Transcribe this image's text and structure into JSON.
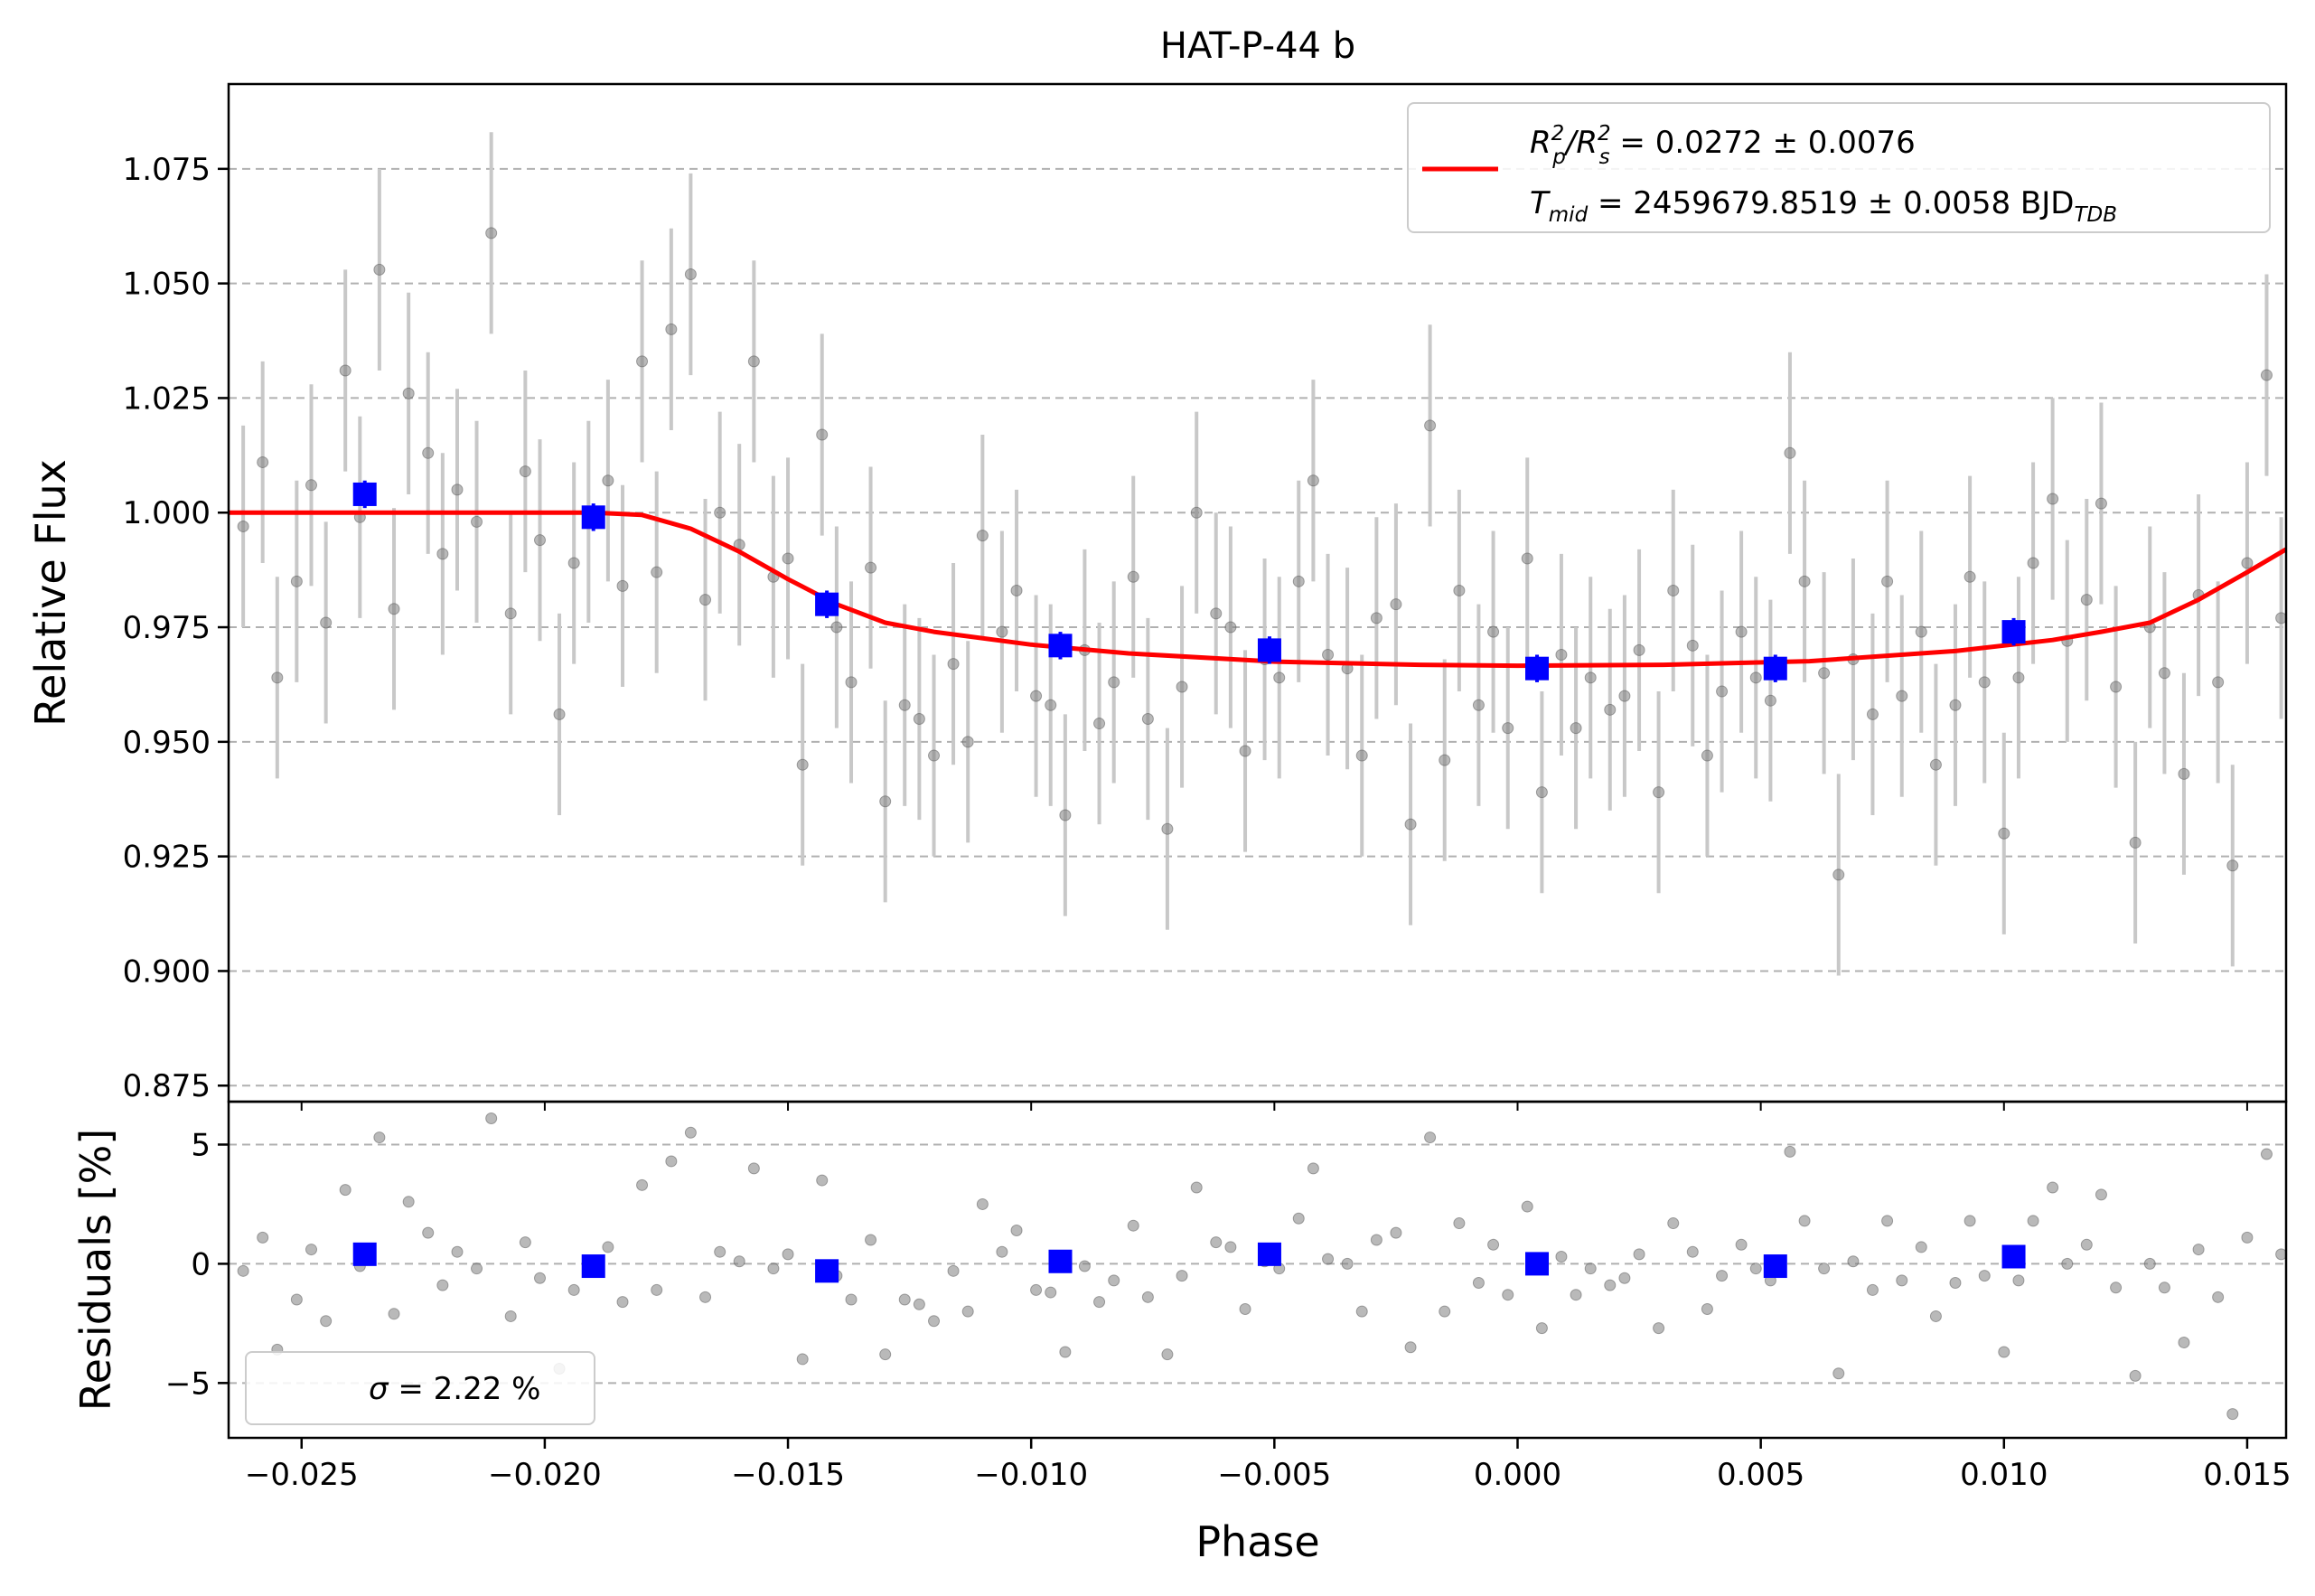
{
  "title": "HAT-P-44 b",
  "top_panel": {
    "ylabel": "Relative Flux",
    "legend": {
      "line1": {
        "pre": "R",
        "sub1": "p",
        "sup1": "2",
        "mid": "/R",
        "sub2": "s",
        "sup2": "2",
        "post": " = 0.0272 ± 0.0076"
      },
      "line2": {
        "pre": "T",
        "sub": "mid",
        "post": " = 2459679.8519 ± 0.0058 BJD",
        "post_sub": "TDB"
      }
    }
  },
  "bottom_panel": {
    "ylabel": "Residuals [%]",
    "legend": {
      "sigma_symbol": "σ",
      "text": " = 2.22 %"
    }
  },
  "xlabel": "Phase",
  "colors": {
    "model": "#ff0000",
    "binned": "#0000ff",
    "data": "#808080",
    "errorbar": "#c8c8c8",
    "grid": "#b0b0b0"
  },
  "chart_data": [
    {
      "type": "scatter",
      "title": "HAT-P-44 b",
      "xlabel": "Phase",
      "ylabel": "Relative Flux",
      "xlim": [
        -0.0265,
        0.0158
      ],
      "ylim": [
        0.8715,
        1.0935
      ],
      "grid": "horizontal dashed",
      "legend_position": "top-right",
      "x_ticks": [
        "−0.025",
        "−0.020",
        "−0.015",
        "−0.010",
        "−0.005",
        "0.000",
        "0.005",
        "0.010",
        "0.015"
      ],
      "x_tick_values": [
        -0.025,
        -0.02,
        -0.015,
        -0.01,
        -0.005,
        0.0,
        0.005,
        0.01,
        0.015
      ],
      "y_ticks": [
        "0.875",
        "0.900",
        "0.925",
        "0.950",
        "0.975",
        "1.000",
        "1.025",
        "1.050",
        "1.075"
      ],
      "y_tick_values": [
        0.875,
        0.9,
        0.925,
        0.95,
        0.975,
        1.0,
        1.025,
        1.05,
        1.075
      ],
      "model_series": {
        "name": "R_p^2/R_s^2 = 0.0272 ± 0.0076; T_mid = 2459679.8519 ± 0.0058 BJD_TDB",
        "x": [
          -0.0265,
          -0.019,
          -0.018,
          -0.017,
          -0.016,
          -0.015,
          -0.014,
          -0.013,
          -0.012,
          -0.01,
          -0.008,
          -0.005,
          -0.002,
          0.0,
          0.003,
          0.006,
          0.009,
          0.011,
          0.012,
          0.013,
          0.014,
          0.015,
          0.0158
        ],
        "y": [
          1.0,
          1.0,
          0.9995,
          0.9965,
          0.9915,
          0.9855,
          0.98,
          0.976,
          0.974,
          0.9712,
          0.9693,
          0.9675,
          0.9668,
          0.9666,
          0.9668,
          0.9676,
          0.9698,
          0.9722,
          0.974,
          0.976,
          0.981,
          0.987,
          0.992
        ]
      },
      "binned": {
        "x": [
          -0.0237,
          -0.019,
          -0.0142,
          -0.0094,
          -0.0051,
          0.0004,
          0.0053,
          0.0102
        ],
        "y": [
          1.004,
          0.999,
          0.98,
          0.971,
          0.97,
          0.966,
          0.966,
          0.974
        ],
        "yerr": [
          0.003,
          0.003,
          0.003,
          0.003,
          0.003,
          0.003,
          0.003,
          0.003
        ]
      },
      "data_points": {
        "x": [
          -0.0262,
          -0.0258,
          -0.0255,
          -0.0251,
          -0.0248,
          -0.0245,
          -0.0241,
          -0.0238,
          -0.0234,
          -0.0231,
          -0.0228,
          -0.0224,
          -0.0221,
          -0.0218,
          -0.0214,
          -0.0211,
          -0.0207,
          -0.0204,
          -0.0201,
          -0.0197,
          -0.0194,
          -0.0191,
          -0.0187,
          -0.0184,
          -0.018,
          -0.0177,
          -0.0174,
          -0.017,
          -0.0167,
          -0.0164,
          -0.016,
          -0.0157,
          -0.0153,
          -0.015,
          -0.0147,
          -0.0143,
          -0.014,
          -0.0137,
          -0.0133,
          -0.013,
          -0.0126,
          -0.0123,
          -0.012,
          -0.0116,
          -0.0113,
          -0.011,
          -0.0106,
          -0.0103,
          -0.0099,
          -0.0096,
          -0.0093,
          -0.0089,
          -0.0086,
          -0.0083,
          -0.0079,
          -0.0076,
          -0.0072,
          -0.0069,
          -0.0066,
          -0.0062,
          -0.0059,
          -0.0056,
          -0.0052,
          -0.0049,
          -0.0045,
          -0.0042,
          -0.0039,
          -0.0035,
          -0.0032,
          -0.0029,
          -0.0025,
          -0.0022,
          -0.0018,
          -0.0015,
          -0.0012,
          -0.0008,
          -0.0005,
          -0.0002,
          0.0002,
          0.0005,
          0.0009,
          0.0012,
          0.0015,
          0.0019,
          0.0022,
          0.0025,
          0.0029,
          0.0032,
          0.0036,
          0.0039,
          0.0042,
          0.0046,
          0.0049,
          0.0052,
          0.0056,
          0.0059,
          0.0063,
          0.0066,
          0.0069,
          0.0073,
          0.0076,
          0.0079,
          0.0083,
          0.0086,
          0.009,
          0.0093,
          0.0096,
          0.01,
          0.0103,
          0.0106,
          0.011,
          0.0113,
          0.0117,
          0.012,
          0.0123,
          0.0127,
          0.013,
          0.0133,
          0.0137,
          0.014,
          0.0144,
          0.0147,
          0.015,
          0.0154,
          0.0157
        ],
        "y": [
          0.997,
          1.011,
          0.964,
          0.985,
          1.006,
          0.976,
          1.031,
          0.999,
          1.053,
          0.979,
          1.026,
          1.013,
          0.991,
          1.005,
          0.998,
          1.061,
          0.978,
          1.009,
          0.994,
          0.956,
          0.989,
          0.998,
          1.007,
          0.984,
          1.033,
          0.987,
          1.04,
          1.052,
          0.981,
          1.0,
          0.993,
          1.033,
          0.986,
          0.99,
          0.945,
          1.017,
          0.975,
          0.963,
          0.988,
          0.937,
          0.958,
          0.955,
          0.947,
          0.967,
          0.95,
          0.995,
          0.974,
          0.983,
          0.96,
          0.958,
          0.934,
          0.97,
          0.954,
          0.963,
          0.986,
          0.955,
          0.931,
          0.962,
          1.0,
          0.978,
          0.975,
          0.948,
          0.968,
          0.964,
          0.985,
          1.007,
          0.969,
          0.966,
          0.947,
          0.977,
          0.98,
          0.932,
          1.019,
          0.946,
          0.983,
          0.958,
          0.974,
          0.953,
          0.99,
          0.939,
          0.969,
          0.953,
          0.964,
          0.957,
          0.96,
          0.97,
          0.939,
          0.983,
          0.971,
          0.947,
          0.961,
          0.974,
          0.964,
          0.959,
          1.013,
          0.985,
          0.965,
          0.921,
          0.968,
          0.956,
          0.985,
          0.96,
          0.974,
          0.945,
          0.958,
          0.986,
          0.963,
          0.93,
          0.964,
          0.989,
          1.003,
          0.972,
          0.981,
          1.002,
          0.962,
          0.928,
          0.975,
          0.965,
          0.943,
          0.982,
          0.963,
          0.923,
          0.989,
          1.03,
          0.977
        ],
        "yerr": [
          0.022,
          0.022,
          0.022,
          0.022,
          0.022,
          0.022,
          0.022,
          0.022,
          0.022,
          0.022,
          0.022,
          0.022,
          0.022,
          0.022,
          0.022,
          0.022,
          0.022,
          0.022,
          0.022,
          0.022,
          0.022,
          0.022,
          0.022,
          0.022,
          0.022,
          0.022,
          0.022,
          0.022,
          0.022,
          0.022,
          0.022,
          0.022,
          0.022,
          0.022,
          0.022,
          0.022,
          0.022,
          0.022,
          0.022,
          0.022,
          0.022,
          0.022,
          0.022,
          0.022,
          0.022,
          0.022,
          0.022,
          0.022,
          0.022,
          0.022,
          0.022,
          0.022,
          0.022,
          0.022,
          0.022,
          0.022,
          0.022,
          0.022,
          0.022,
          0.022,
          0.022,
          0.022,
          0.022,
          0.022,
          0.022,
          0.022,
          0.022,
          0.022,
          0.022,
          0.022,
          0.022,
          0.022,
          0.022,
          0.022,
          0.022,
          0.022,
          0.022,
          0.022,
          0.022,
          0.022,
          0.022,
          0.022,
          0.022,
          0.022,
          0.022,
          0.022,
          0.022,
          0.022,
          0.022,
          0.022,
          0.022,
          0.022,
          0.022,
          0.022,
          0.022,
          0.022,
          0.022,
          0.022,
          0.022,
          0.022,
          0.022,
          0.022,
          0.022,
          0.022,
          0.022,
          0.022,
          0.022,
          0.022,
          0.022,
          0.022,
          0.022,
          0.022,
          0.022,
          0.022,
          0.022,
          0.022,
          0.022,
          0.022,
          0.022,
          0.022,
          0.022,
          0.022,
          0.022,
          0.022,
          0.022
        ]
      }
    },
    {
      "type": "scatter",
      "xlabel": "Phase",
      "ylabel": "Residuals [%]",
      "xlim": [
        -0.0265,
        0.0158
      ],
      "ylim": [
        -7.3,
        6.8
      ],
      "grid": "horizontal dashed",
      "legend_position": "bottom-left",
      "y_ticks": [
        "−5",
        "0",
        "5"
      ],
      "y_tick_values": [
        -5,
        0,
        5
      ],
      "binned": {
        "x": [
          -0.0237,
          -0.019,
          -0.0142,
          -0.0094,
          -0.0051,
          0.0004,
          0.0053,
          0.0102
        ],
        "y": [
          0.4,
          -0.1,
          -0.3,
          0.1,
          0.4,
          0.0,
          -0.1,
          0.3
        ]
      },
      "data_points": {
        "x": [
          -0.0262,
          -0.0258,
          -0.0255,
          -0.0251,
          -0.0248,
          -0.0245,
          -0.0241,
          -0.0238,
          -0.0234,
          -0.0231,
          -0.0228,
          -0.0224,
          -0.0221,
          -0.0218,
          -0.0214,
          -0.0211,
          -0.0207,
          -0.0204,
          -0.0201,
          -0.0197,
          -0.0194,
          -0.0191,
          -0.0187,
          -0.0184,
          -0.018,
          -0.0177,
          -0.0174,
          -0.017,
          -0.0167,
          -0.0164,
          -0.016,
          -0.0157,
          -0.0153,
          -0.015,
          -0.0147,
          -0.0143,
          -0.014,
          -0.0137,
          -0.0133,
          -0.013,
          -0.0126,
          -0.0123,
          -0.012,
          -0.0116,
          -0.0113,
          -0.011,
          -0.0106,
          -0.0103,
          -0.0099,
          -0.0096,
          -0.0093,
          -0.0089,
          -0.0086,
          -0.0083,
          -0.0079,
          -0.0076,
          -0.0072,
          -0.0069,
          -0.0066,
          -0.0062,
          -0.0059,
          -0.0056,
          -0.0052,
          -0.0049,
          -0.0045,
          -0.0042,
          -0.0039,
          -0.0035,
          -0.0032,
          -0.0029,
          -0.0025,
          -0.0022,
          -0.0018,
          -0.0015,
          -0.0012,
          -0.0008,
          -0.0005,
          -0.0002,
          0.0002,
          0.0005,
          0.0009,
          0.0012,
          0.0015,
          0.0019,
          0.0022,
          0.0025,
          0.0029,
          0.0032,
          0.0036,
          0.0039,
          0.0042,
          0.0046,
          0.0049,
          0.0052,
          0.0056,
          0.0059,
          0.0063,
          0.0066,
          0.0069,
          0.0073,
          0.0076,
          0.0079,
          0.0083,
          0.0086,
          0.009,
          0.0093,
          0.0096,
          0.01,
          0.0103,
          0.0106,
          0.011,
          0.0113,
          0.0117,
          0.012,
          0.0123,
          0.0127,
          0.013,
          0.0133,
          0.0137,
          0.014,
          0.0144,
          0.0147,
          0.015,
          0.0154,
          0.0157
        ],
        "y": [
          -0.3,
          1.1,
          -3.6,
          -1.5,
          0.6,
          -2.4,
          3.1,
          -0.1,
          5.3,
          -2.1,
          2.6,
          1.3,
          -0.9,
          0.5,
          -0.2,
          6.1,
          -2.2,
          0.9,
          -0.6,
          -4.4,
          -1.1,
          -0.2,
          0.7,
          -1.6,
          3.3,
          -1.1,
          4.3,
          5.5,
          -1.4,
          0.5,
          0.1,
          4.0,
          -0.2,
          0.4,
          -4.0,
          3.5,
          -0.5,
          -1.5,
          1.0,
          -3.8,
          -1.5,
          -1.7,
          -2.4,
          -0.3,
          -2.0,
          2.5,
          0.5,
          1.4,
          -1.1,
          -1.2,
          -3.7,
          -0.1,
          -1.6,
          -0.7,
          1.6,
          -1.4,
          -3.8,
          -0.5,
          3.2,
          0.9,
          0.7,
          -1.9,
          0.1,
          -0.2,
          1.9,
          4.0,
          0.2,
          0.0,
          -2.0,
          1.0,
          1.3,
          -3.5,
          5.3,
          -2.0,
          1.7,
          -0.8,
          0.8,
          -1.3,
          2.4,
          -2.7,
          0.3,
          -1.3,
          -0.2,
          -0.9,
          -0.6,
          0.4,
          -2.7,
          1.7,
          0.5,
          -1.9,
          -0.5,
          0.8,
          -0.2,
          -0.7,
          4.7,
          1.8,
          -0.2,
          -4.6,
          0.1,
          -1.1,
          1.8,
          -0.7,
          0.7,
          -2.2,
          -0.8,
          1.8,
          -0.5,
          -3.7,
          -0.7,
          1.8,
          3.2,
          0.0,
          0.8,
          2.9,
          -1.0,
          -4.7,
          0.0,
          -1.0,
          -3.3,
          0.6,
          -1.4,
          -6.3,
          1.1,
          4.6,
          0.4
        ]
      }
    }
  ]
}
